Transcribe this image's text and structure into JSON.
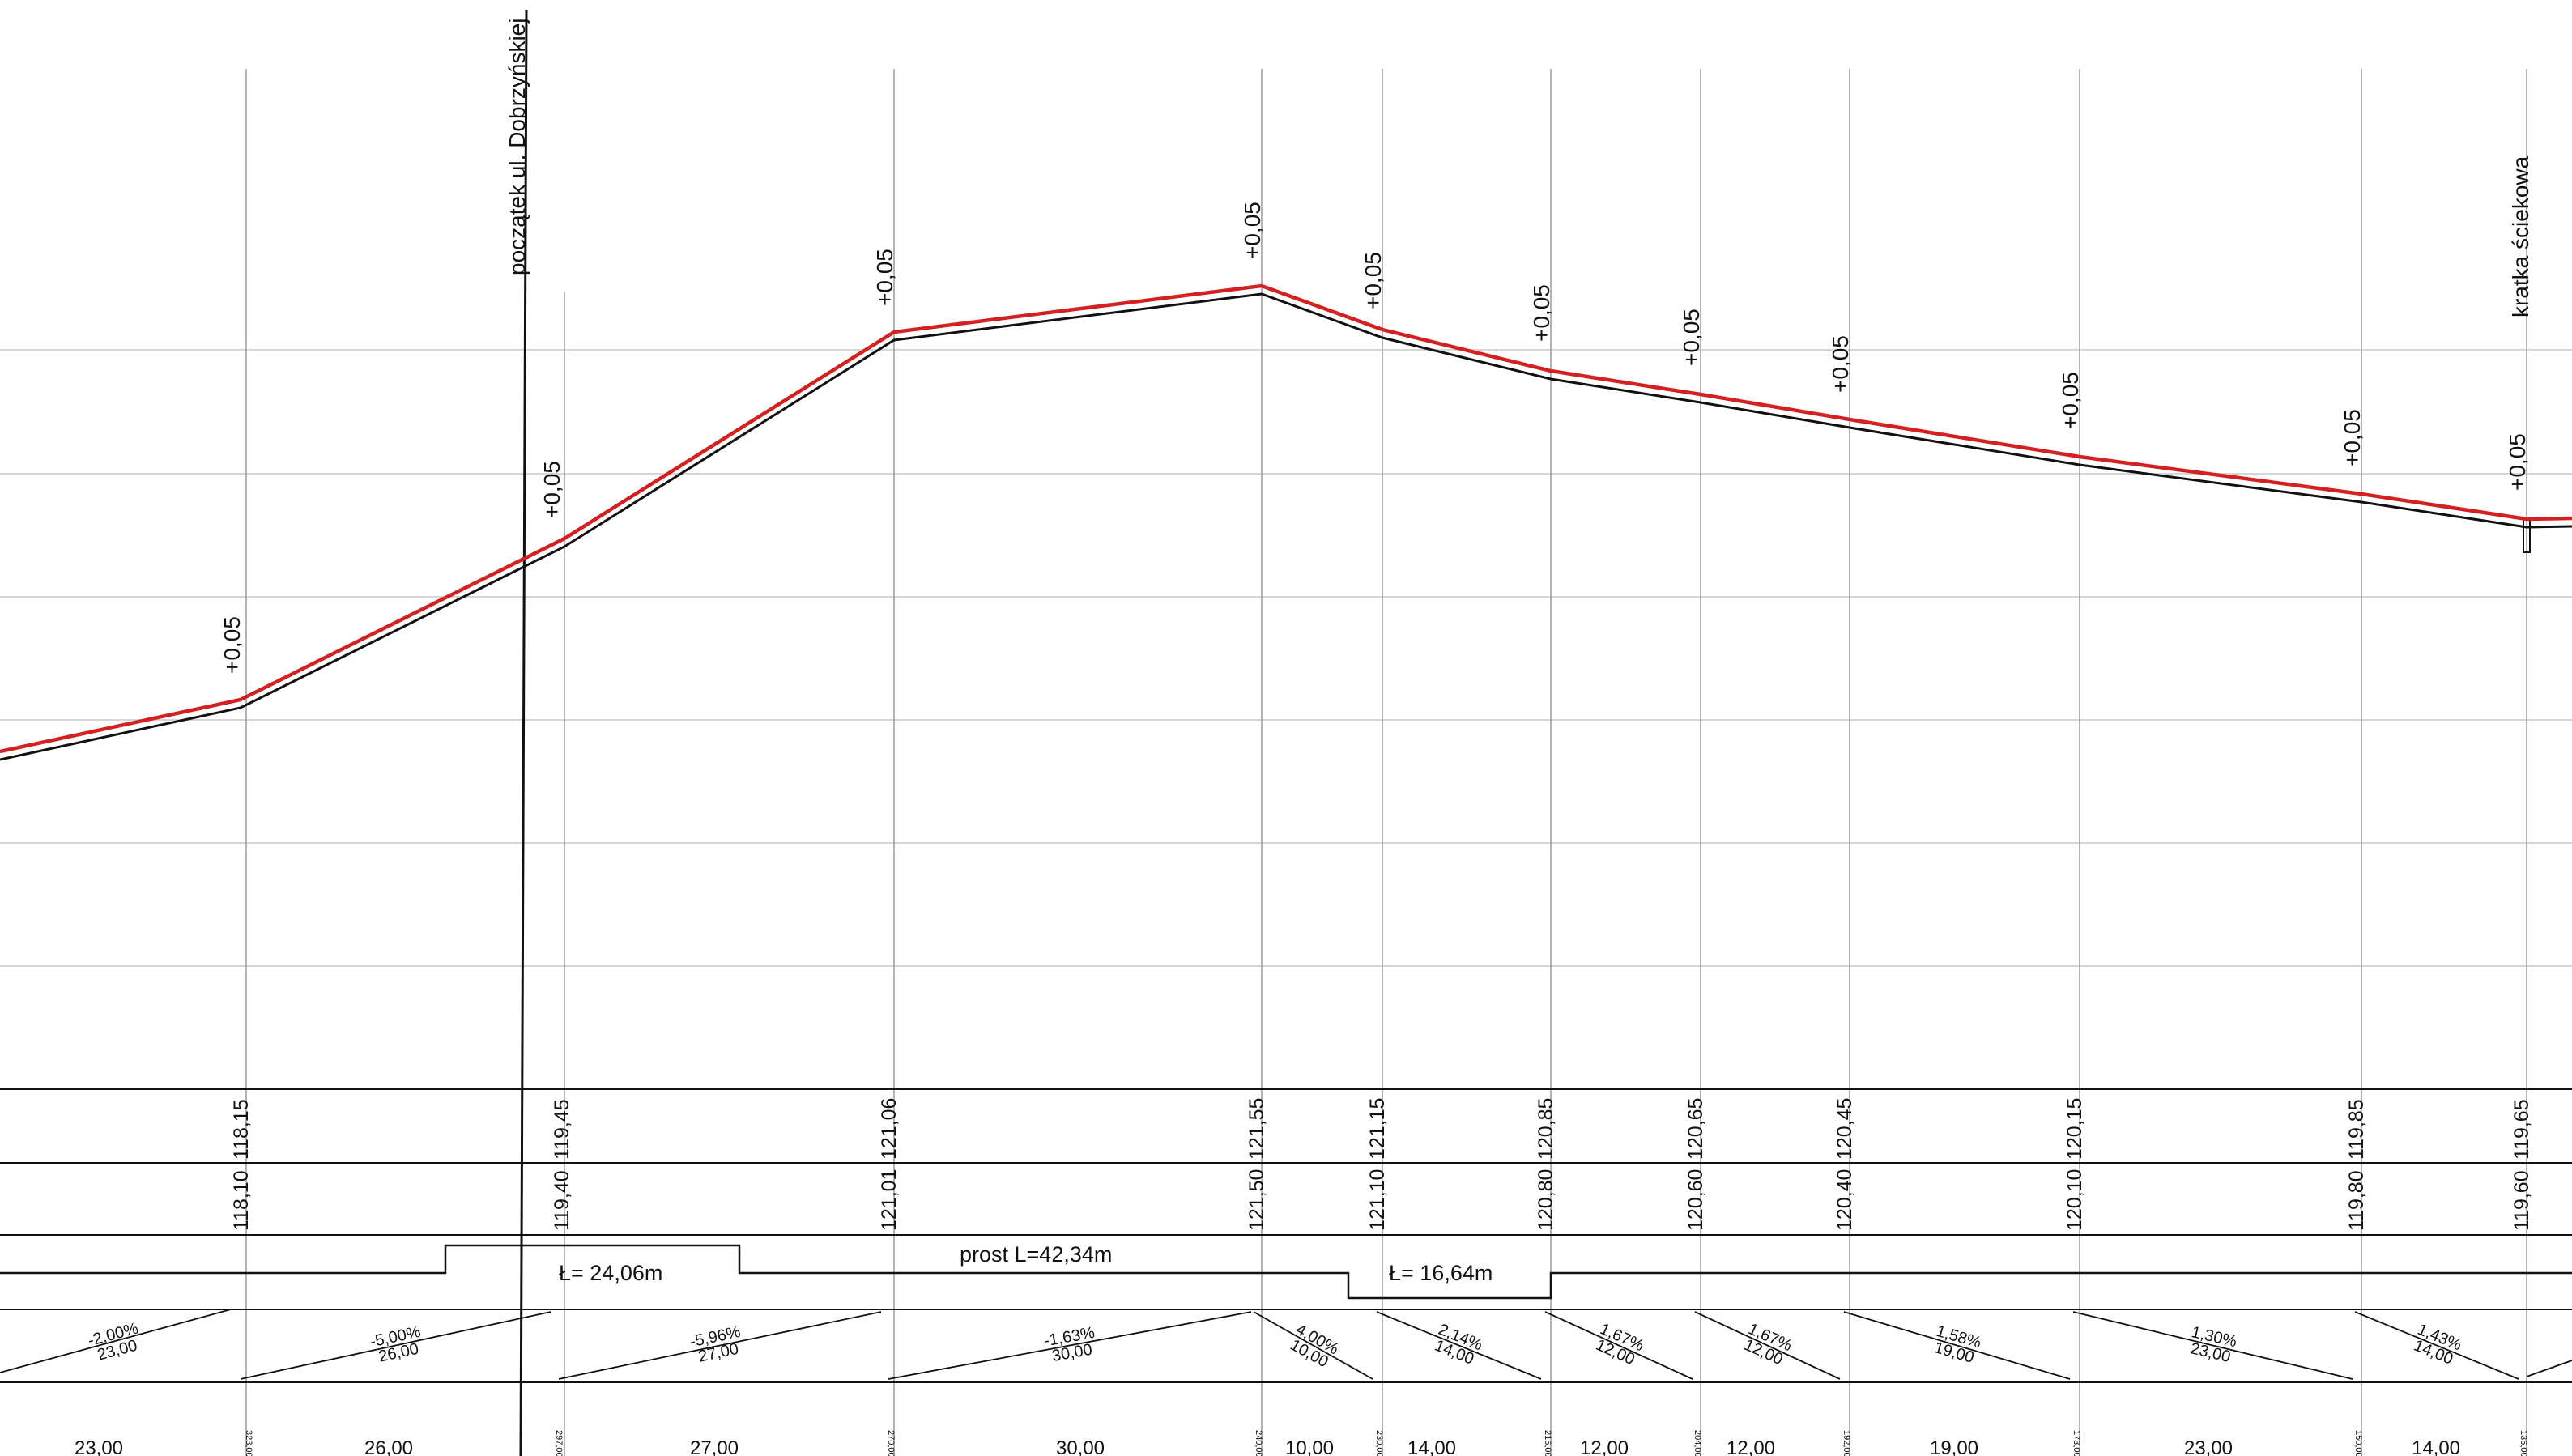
{
  "stations": [
    {
      "name": "st-1",
      "design": "118,15",
      "terrain": "118,10",
      "offset": "+0,05",
      "chainage": "323,00"
    },
    {
      "name": "st-2",
      "design": "119,45",
      "terrain": "119,40",
      "offset": "+0,05",
      "chainage": "297,00"
    },
    {
      "name": "st-3",
      "design": "121,06",
      "terrain": "121,01",
      "offset": "+0,05",
      "chainage": "270,00"
    },
    {
      "name": "st-4",
      "design": "121,55",
      "terrain": "121,50",
      "offset": "+0,05",
      "chainage": "240,00"
    },
    {
      "name": "st-5",
      "design": "121,15",
      "terrain": "121,10",
      "offset": "+0,05",
      "chainage": "230,00"
    },
    {
      "name": "st-6",
      "design": "120,85",
      "terrain": "120,80",
      "offset": "+0,05",
      "chainage": "216,00"
    },
    {
      "name": "st-7",
      "design": "120,65",
      "terrain": "120,60",
      "offset": "+0,05",
      "chainage": "204,00"
    },
    {
      "name": "st-8",
      "design": "120,45",
      "terrain": "120,40",
      "offset": "+0,05",
      "chainage": "192,00"
    },
    {
      "name": "st-9",
      "design": "120,15",
      "terrain": "120,10",
      "offset": "+0,05",
      "chainage": "173,00"
    },
    {
      "name": "st-10",
      "design": "119,85",
      "terrain": "119,80",
      "offset": "+0,05",
      "chainage": "150,00"
    },
    {
      "name": "st-11",
      "design": "119,65",
      "terrain": "119,60",
      "offset": "+0,05",
      "chainage": "136,00"
    }
  ],
  "annotations": {
    "start_street": "początek ul. Dobrzyńskiej",
    "drain_grate": "kratka ściekowa"
  },
  "alignment": {
    "arc_left": "Ł= 24,06m",
    "straight": "prost L=42,34m",
    "arc_right": "Ł= 16,64m"
  },
  "slopes": [
    {
      "percent": "-2,00%",
      "length": "23,00"
    },
    {
      "percent": "-5,00%",
      "length": "26,00"
    },
    {
      "percent": "-5,96%",
      "length": "27,00"
    },
    {
      "percent": "-1,63%",
      "length": "30,00"
    },
    {
      "percent": "4,00%",
      "length": "10,00"
    },
    {
      "percent": "2,14%",
      "length": "14,00"
    },
    {
      "percent": "1,67%",
      "length": "12,00"
    },
    {
      "percent": "1,67%",
      "length": "12,00"
    },
    {
      "percent": "1,58%",
      "length": "19,00"
    },
    {
      "percent": "1,30%",
      "length": "23,00"
    },
    {
      "percent": "1,43%",
      "length": "14,00"
    }
  ],
  "distances": [
    "23,00",
    "26,00",
    "27,00",
    "30,00",
    "10,00",
    "14,00",
    "12,00",
    "12,00",
    "19,00",
    "23,00",
    "14,00"
  ],
  "colors": {
    "design_line": "#d42020",
    "terrain_line": "#111111",
    "grid": "#c8c8c8"
  }
}
